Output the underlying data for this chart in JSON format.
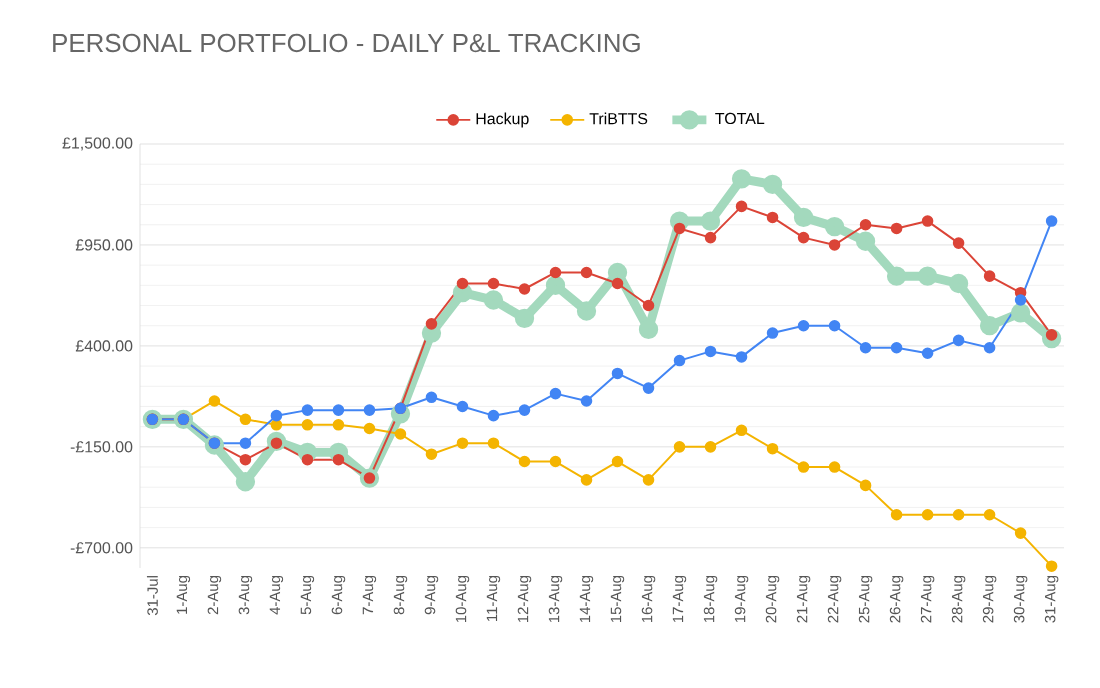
{
  "chart_data": {
    "type": "line",
    "title": "PERSONAL PORTFOLIO - DAILY P&L TRACKING",
    "categories": [
      "31-Jul",
      "1-Aug",
      "2-Aug",
      "3-Aug",
      "4-Aug",
      "5-Aug",
      "6-Aug",
      "7-Aug",
      "8-Aug",
      "9-Aug",
      "10-Aug",
      "11-Aug",
      "12-Aug",
      "13-Aug",
      "14-Aug",
      "15-Aug",
      "16-Aug",
      "17-Aug",
      "18-Aug",
      "19-Aug",
      "20-Aug",
      "21-Aug",
      "22-Aug",
      "25-Aug",
      "26-Aug",
      "27-Aug",
      "28-Aug",
      "29-Aug",
      "30-Aug",
      "31-Aug"
    ],
    "series": [
      {
        "color": "#4285f4",
        "values": [
          0,
          0,
          -130,
          -130,
          20,
          50,
          50,
          50,
          60,
          120,
          70,
          20,
          50,
          140,
          100,
          250,
          170,
          320,
          370,
          340,
          470,
          510,
          510,
          390,
          390,
          360,
          430,
          390,
          650,
          1080
        ]
      },
      {
        "name": "Hackup",
        "color": "#db4437",
        "values": [
          0,
          0,
          -130,
          -220,
          -130,
          -220,
          -220,
          -320,
          60,
          520,
          740,
          740,
          710,
          800,
          800,
          740,
          620,
          1040,
          990,
          1160,
          1100,
          990,
          950,
          1060,
          1040,
          1080,
          960,
          780,
          690,
          460
        ]
      },
      {
        "name": "TriBTTS",
        "color": "#f4b400",
        "values": [
          0,
          0,
          100,
          0,
          -30,
          -30,
          -30,
          -50,
          -80,
          -190,
          -130,
          -130,
          -230,
          -230,
          -330,
          -230,
          -330,
          -150,
          -150,
          -60,
          -160,
          -260,
          -260,
          -360,
          -520,
          -520,
          -520,
          -520,
          -620,
          -800
        ]
      },
      {
        "name": "TOTAL",
        "color": "#a3d9bd",
        "values": [
          0,
          0,
          -140,
          -340,
          -120,
          -180,
          -180,
          -320,
          30,
          470,
          690,
          650,
          550,
          730,
          590,
          800,
          490,
          1080,
          1080,
          1310,
          1280,
          1100,
          1050,
          970,
          780,
          780,
          740,
          510,
          580,
          440
        ]
      }
    ],
    "ylim": [
      -810,
      1500
    ],
    "yticks": [
      {
        "value": -700,
        "label": "-£700.00"
      },
      {
        "value": -150,
        "label": "-£150.00"
      },
      {
        "value": 400,
        "label": "£400.00"
      },
      {
        "value": 950,
        "label": "£950.00"
      },
      {
        "value": 1500,
        "label": "£1,500.00"
      }
    ],
    "grid": "y",
    "legend": "top",
    "marker": "circle",
    "line_style": "solid"
  }
}
